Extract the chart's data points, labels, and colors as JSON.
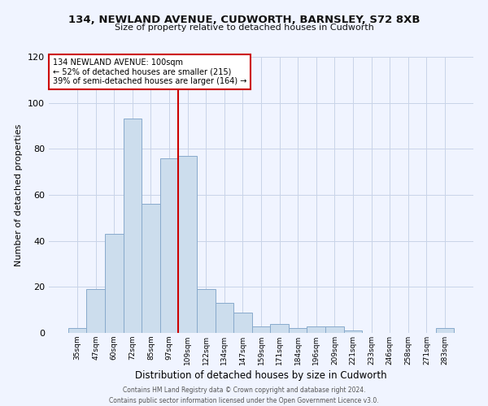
{
  "title": "134, NEWLAND AVENUE, CUDWORTH, BARNSLEY, S72 8XB",
  "subtitle": "Size of property relative to detached houses in Cudworth",
  "xlabel": "Distribution of detached houses by size in Cudworth",
  "ylabel": "Number of detached properties",
  "bar_labels": [
    "35sqm",
    "47sqm",
    "60sqm",
    "72sqm",
    "85sqm",
    "97sqm",
    "109sqm",
    "122sqm",
    "134sqm",
    "147sqm",
    "159sqm",
    "171sqm",
    "184sqm",
    "196sqm",
    "209sqm",
    "221sqm",
    "233sqm",
    "246sqm",
    "258sqm",
    "271sqm",
    "283sqm"
  ],
  "bar_heights": [
    2,
    19,
    43,
    93,
    56,
    76,
    77,
    19,
    13,
    9,
    3,
    4,
    2,
    3,
    3,
    1,
    0,
    0,
    0,
    0,
    2
  ],
  "bar_color": "#ccdded",
  "bar_edge_color": "#88aacc",
  "vline_index": 5.5,
  "vline_color": "#cc0000",
  "ylim": [
    0,
    120
  ],
  "yticks": [
    0,
    20,
    40,
    60,
    80,
    100,
    120
  ],
  "annotation_title": "134 NEWLAND AVENUE: 100sqm",
  "annotation_line2": "← 52% of detached houses are smaller (215)",
  "annotation_line3": "39% of semi-detached houses are larger (164) →",
  "annotation_box_color": "#ffffff",
  "annotation_box_edge_color": "#cc0000",
  "footer_line1": "Contains HM Land Registry data © Crown copyright and database right 2024.",
  "footer_line2": "Contains public sector information licensed under the Open Government Licence v3.0.",
  "background_color": "#f0f4ff",
  "grid_color": "#c8d4e8"
}
